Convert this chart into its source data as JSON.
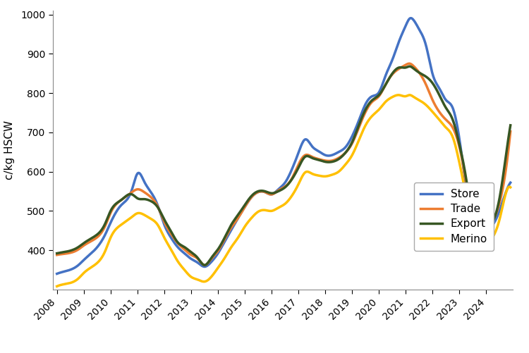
{
  "title": "",
  "ylabel": "c/kg HSCW",
  "xlabel": "",
  "ylim": [
    300,
    1010
  ],
  "yticks": [
    400,
    500,
    600,
    700,
    800,
    900,
    1000
  ],
  "background_color": "#ffffff",
  "line_width": 2.5,
  "series": {
    "Store": {
      "color": "#4472C4",
      "points": [
        [
          2008.0,
          340
        ],
        [
          2008.4,
          348
        ],
        [
          2008.8,
          362
        ],
        [
          2009.0,
          375
        ],
        [
          2009.4,
          400
        ],
        [
          2009.8,
          440
        ],
        [
          2010.0,
          470
        ],
        [
          2010.4,
          515
        ],
        [
          2010.8,
          555
        ],
        [
          2011.0,
          595
        ],
        [
          2011.25,
          575
        ],
        [
          2011.5,
          548
        ],
        [
          2011.75,
          515
        ],
        [
          2012.0,
          465
        ],
        [
          2012.25,
          432
        ],
        [
          2012.5,
          408
        ],
        [
          2012.75,
          392
        ],
        [
          2013.0,
          378
        ],
        [
          2013.25,
          368
        ],
        [
          2013.5,
          358
        ],
        [
          2013.75,
          370
        ],
        [
          2014.0,
          392
        ],
        [
          2014.25,
          422
        ],
        [
          2014.5,
          452
        ],
        [
          2014.75,
          482
        ],
        [
          2015.0,
          510
        ],
        [
          2015.25,
          535
        ],
        [
          2015.5,
          548
        ],
        [
          2015.75,
          548
        ],
        [
          2016.0,
          542
        ],
        [
          2016.25,
          555
        ],
        [
          2016.5,
          572
        ],
        [
          2016.75,
          605
        ],
        [
          2017.0,
          648
        ],
        [
          2017.25,
          682
        ],
        [
          2017.5,
          665
        ],
        [
          2017.75,
          652
        ],
        [
          2018.0,
          642
        ],
        [
          2018.25,
          642
        ],
        [
          2018.5,
          650
        ],
        [
          2018.75,
          662
        ],
        [
          2019.0,
          690
        ],
        [
          2019.25,
          730
        ],
        [
          2019.5,
          772
        ],
        [
          2019.75,
          792
        ],
        [
          2020.0,
          802
        ],
        [
          2020.25,
          845
        ],
        [
          2020.5,
          885
        ],
        [
          2020.75,
          932
        ],
        [
          2021.0,
          972
        ],
        [
          2021.15,
          990
        ],
        [
          2021.3,
          985
        ],
        [
          2021.5,
          962
        ],
        [
          2021.75,
          922
        ],
        [
          2022.0,
          848
        ],
        [
          2022.25,
          812
        ],
        [
          2022.5,
          782
        ],
        [
          2022.75,
          762
        ],
        [
          2023.0,
          682
        ],
        [
          2023.2,
          582
        ],
        [
          2023.4,
          492
        ],
        [
          2023.6,
          462
        ],
        [
          2023.8,
          458
        ],
        [
          2024.0,
          458
        ],
        [
          2024.2,
          462
        ],
        [
          2024.5,
          502
        ],
        [
          2024.7,
          542
        ],
        [
          2024.9,
          572
        ]
      ]
    },
    "Trade": {
      "color": "#ED7D31",
      "points": [
        [
          2008.0,
          388
        ],
        [
          2008.4,
          392
        ],
        [
          2008.8,
          402
        ],
        [
          2009.0,
          412
        ],
        [
          2009.4,
          428
        ],
        [
          2009.8,
          462
        ],
        [
          2010.0,
          495
        ],
        [
          2010.4,
          528
        ],
        [
          2010.8,
          548
        ],
        [
          2011.0,
          555
        ],
        [
          2011.25,
          548
        ],
        [
          2011.5,
          535
        ],
        [
          2011.75,
          512
        ],
        [
          2012.0,
          472
        ],
        [
          2012.25,
          442
        ],
        [
          2012.5,
          418
        ],
        [
          2012.75,
          402
        ],
        [
          2013.0,
          388
        ],
        [
          2013.25,
          378
        ],
        [
          2013.5,
          362
        ],
        [
          2013.75,
          378
        ],
        [
          2014.0,
          398
        ],
        [
          2014.25,
          428
        ],
        [
          2014.5,
          458
        ],
        [
          2014.75,
          482
        ],
        [
          2015.0,
          510
        ],
        [
          2015.25,
          535
        ],
        [
          2015.5,
          548
        ],
        [
          2015.75,
          548
        ],
        [
          2016.0,
          542
        ],
        [
          2016.25,
          552
        ],
        [
          2016.5,
          562
        ],
        [
          2016.75,
          582
        ],
        [
          2017.0,
          618
        ],
        [
          2017.25,
          642
        ],
        [
          2017.5,
          638
        ],
        [
          2017.75,
          632
        ],
        [
          2018.0,
          628
        ],
        [
          2018.25,
          628
        ],
        [
          2018.5,
          635
        ],
        [
          2018.75,
          648
        ],
        [
          2019.0,
          672
        ],
        [
          2019.25,
          712
        ],
        [
          2019.5,
          752
        ],
        [
          2019.75,
          778
        ],
        [
          2020.0,
          792
        ],
        [
          2020.25,
          822
        ],
        [
          2020.5,
          848
        ],
        [
          2020.75,
          862
        ],
        [
          2021.0,
          872
        ],
        [
          2021.15,
          875
        ],
        [
          2021.3,
          868
        ],
        [
          2021.5,
          852
        ],
        [
          2021.75,
          822
        ],
        [
          2022.0,
          782
        ],
        [
          2022.25,
          752
        ],
        [
          2022.5,
          732
        ],
        [
          2022.75,
          712
        ],
        [
          2023.0,
          662
        ],
        [
          2023.2,
          592
        ],
        [
          2023.4,
          512
        ],
        [
          2023.6,
          472
        ],
        [
          2023.8,
          462
        ],
        [
          2024.0,
          462
        ],
        [
          2024.2,
          472
        ],
        [
          2024.5,
          522
        ],
        [
          2024.7,
          592
        ],
        [
          2024.9,
          702
        ]
      ]
    },
    "Export": {
      "color": "#375623",
      "points": [
        [
          2008.0,
          392
        ],
        [
          2008.4,
          397
        ],
        [
          2008.8,
          408
        ],
        [
          2009.0,
          418
        ],
        [
          2009.4,
          435
        ],
        [
          2009.8,
          468
        ],
        [
          2010.0,
          500
        ],
        [
          2010.4,
          528
        ],
        [
          2010.8,
          542
        ],
        [
          2011.0,
          532
        ],
        [
          2011.25,
          530
        ],
        [
          2011.5,
          525
        ],
        [
          2011.75,
          510
        ],
        [
          2012.0,
          478
        ],
        [
          2012.25,
          448
        ],
        [
          2012.5,
          420
        ],
        [
          2012.75,
          408
        ],
        [
          2013.0,
          395
        ],
        [
          2013.25,
          380
        ],
        [
          2013.5,
          362
        ],
        [
          2013.75,
          380
        ],
        [
          2014.0,
          402
        ],
        [
          2014.25,
          432
        ],
        [
          2014.5,
          465
        ],
        [
          2014.75,
          490
        ],
        [
          2015.0,
          515
        ],
        [
          2015.25,
          538
        ],
        [
          2015.5,
          550
        ],
        [
          2015.75,
          550
        ],
        [
          2016.0,
          545
        ],
        [
          2016.25,
          550
        ],
        [
          2016.5,
          560
        ],
        [
          2016.75,
          580
        ],
        [
          2017.0,
          610
        ],
        [
          2017.25,
          638
        ],
        [
          2017.5,
          635
        ],
        [
          2017.75,
          630
        ],
        [
          2018.0,
          625
        ],
        [
          2018.25,
          625
        ],
        [
          2018.5,
          632
        ],
        [
          2018.75,
          648
        ],
        [
          2019.0,
          675
        ],
        [
          2019.25,
          718
        ],
        [
          2019.5,
          758
        ],
        [
          2019.75,
          782
        ],
        [
          2020.0,
          795
        ],
        [
          2020.25,
          822
        ],
        [
          2020.5,
          850
        ],
        [
          2020.75,
          865
        ],
        [
          2021.0,
          865
        ],
        [
          2021.15,
          868
        ],
        [
          2021.3,
          862
        ],
        [
          2021.5,
          852
        ],
        [
          2021.75,
          842
        ],
        [
          2022.0,
          825
        ],
        [
          2022.25,
          795
        ],
        [
          2022.5,
          762
        ],
        [
          2022.75,
          732
        ],
        [
          2023.0,
          668
        ],
        [
          2023.2,
          602
        ],
        [
          2023.4,
          522
        ],
        [
          2023.6,
          480
        ],
        [
          2023.8,
          468
        ],
        [
          2024.0,
          465
        ],
        [
          2024.2,
          470
        ],
        [
          2024.5,
          535
        ],
        [
          2024.7,
          625
        ],
        [
          2024.9,
          718
        ]
      ]
    },
    "Merino": {
      "color": "#FFC000",
      "points": [
        [
          2008.0,
          308
        ],
        [
          2008.4,
          315
        ],
        [
          2008.8,
          328
        ],
        [
          2009.0,
          342
        ],
        [
          2009.4,
          362
        ],
        [
          2009.8,
          398
        ],
        [
          2010.0,
          432
        ],
        [
          2010.4,
          465
        ],
        [
          2010.8,
          485
        ],
        [
          2011.0,
          494
        ],
        [
          2011.25,
          490
        ],
        [
          2011.5,
          480
        ],
        [
          2011.75,
          465
        ],
        [
          2012.0,
          432
        ],
        [
          2012.25,
          402
        ],
        [
          2012.5,
          372
        ],
        [
          2012.75,
          350
        ],
        [
          2013.0,
          332
        ],
        [
          2013.25,
          325
        ],
        [
          2013.5,
          320
        ],
        [
          2013.75,
          332
        ],
        [
          2014.0,
          355
        ],
        [
          2014.25,
          380
        ],
        [
          2014.5,
          408
        ],
        [
          2014.75,
          432
        ],
        [
          2015.0,
          460
        ],
        [
          2015.25,
          482
        ],
        [
          2015.5,
          498
        ],
        [
          2015.75,
          502
        ],
        [
          2016.0,
          500
        ],
        [
          2016.25,
          508
        ],
        [
          2016.5,
          518
        ],
        [
          2016.75,
          538
        ],
        [
          2017.0,
          568
        ],
        [
          2017.25,
          598
        ],
        [
          2017.5,
          595
        ],
        [
          2017.75,
          590
        ],
        [
          2018.0,
          588
        ],
        [
          2018.25,
          592
        ],
        [
          2018.5,
          600
        ],
        [
          2018.75,
          618
        ],
        [
          2019.0,
          642
        ],
        [
          2019.25,
          680
        ],
        [
          2019.5,
          718
        ],
        [
          2019.75,
          742
        ],
        [
          2020.0,
          758
        ],
        [
          2020.25,
          778
        ],
        [
          2020.5,
          790
        ],
        [
          2020.75,
          795
        ],
        [
          2021.0,
          792
        ],
        [
          2021.15,
          795
        ],
        [
          2021.3,
          790
        ],
        [
          2021.5,
          782
        ],
        [
          2021.75,
          770
        ],
        [
          2022.0,
          752
        ],
        [
          2022.25,
          732
        ],
        [
          2022.5,
          712
        ],
        [
          2022.75,
          688
        ],
        [
          2023.0,
          622
        ],
        [
          2023.2,
          552
        ],
        [
          2023.4,
          470
        ],
        [
          2023.6,
          430
        ],
        [
          2023.8,
          425
        ],
        [
          2024.0,
          422
        ],
        [
          2024.2,
          430
        ],
        [
          2024.5,
          480
        ],
        [
          2024.7,
          538
        ],
        [
          2024.9,
          560
        ]
      ]
    }
  },
  "xtick_labels": [
    "2008",
    "2009",
    "2010",
    "2011",
    "2012",
    "2013",
    "2014",
    "2015",
    "2016",
    "2017",
    "2018",
    "2019",
    "2020",
    "2021",
    "2022",
    "2023",
    "2024"
  ],
  "xtick_positions": [
    2008,
    2009,
    2010,
    2011,
    2012,
    2013,
    2014,
    2015,
    2016,
    2017,
    2018,
    2019,
    2020,
    2021,
    2022,
    2023,
    2024
  ],
  "legend_labels": [
    "Store",
    "Trade",
    "Export",
    "Merino"
  ],
  "legend_fontsize": 11,
  "ylabel_fontsize": 11,
  "tick_fontsize": 10
}
